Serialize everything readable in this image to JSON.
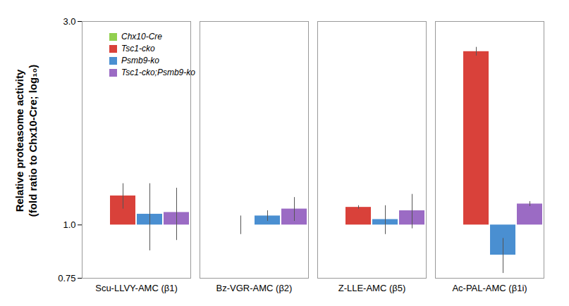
{
  "chart_data": {
    "type": "bar",
    "y_label": "Relative proteasome activity\n(fold ratio to Chx10-Cre; log₁₀)",
    "categories": [
      "Scu-LLVY-AMC (β1)",
      "Bz-VGR-AMC (β2)",
      "Z-LLE-AMC (β5)",
      "Ac-PAL-AMC (β1i)"
    ],
    "series": [
      {
        "name": "Chx10-Cre",
        "color": "#92d050",
        "values": [
          1.0,
          1.0,
          1.0,
          1.0
        ],
        "errors": [
          null,
          null,
          null,
          null
        ]
      },
      {
        "name": "Tsc1-cko",
        "color": "#d9413a",
        "values": [
          1.17,
          1.0,
          1.1,
          2.55
        ],
        "errors": [
          0.08,
          0.05,
          0.01,
          0.06
        ]
      },
      {
        "name": "Psmb9-ko",
        "color": "#4a8fd1",
        "values": [
          1.06,
          1.05,
          1.03,
          0.85
        ],
        "errors": [
          0.19,
          0.03,
          0.08,
          0.08
        ]
      },
      {
        "name": "Tsc1-cko;Psmb9-ko",
        "color": "#9b6bc4",
        "values": [
          1.07,
          1.09,
          1.08,
          1.12
        ],
        "errors": [
          0.15,
          0.07,
          0.1,
          0.015
        ]
      }
    ],
    "log": "y",
    "ylim": [
      0.75,
      3.0
    ],
    "yticks": [
      0.75,
      {
        "value": 1,
        "label": "1.0"
      },
      {
        "value": 3,
        "label": "3.0"
      }
    ],
    "grid": false,
    "legend": "top-left"
  }
}
